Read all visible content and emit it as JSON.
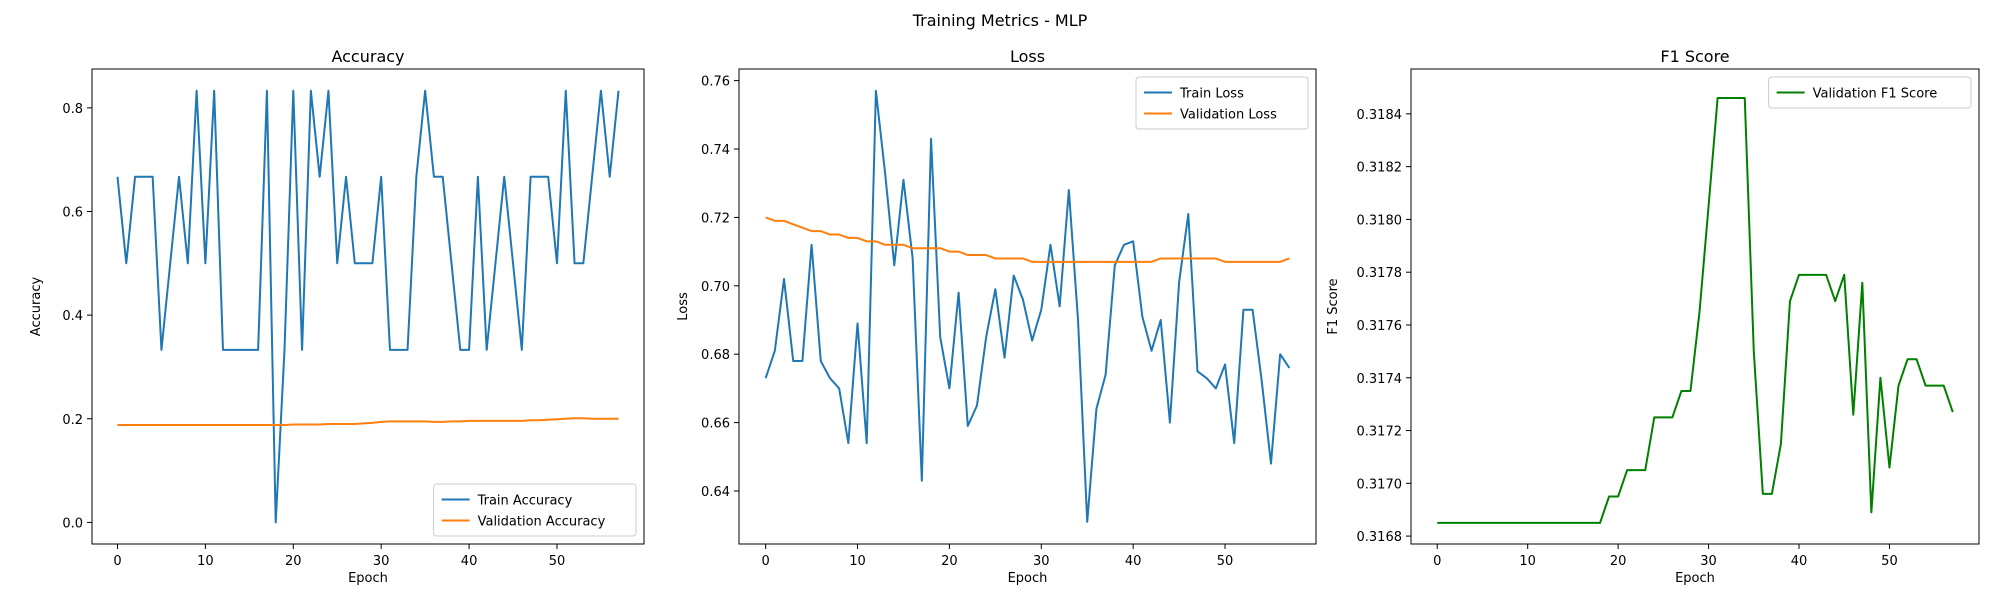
{
  "figure_title": "Training Metrics - MLP",
  "chart_data": [
    {
      "type": "line",
      "title": "Accuracy",
      "xlabel": "Epoch",
      "ylabel": "Accuracy",
      "xlim": [
        -2.9,
        59.9
      ],
      "ylim": [
        -0.0417,
        0.875
      ],
      "xticks": [
        0,
        10,
        20,
        30,
        40,
        50
      ],
      "yticks": [
        0.0,
        0.2,
        0.4,
        0.6,
        0.8
      ],
      "ytick_labels": [
        "0.0",
        "0.2",
        "0.4",
        "0.6",
        "0.8"
      ],
      "legend_loc": "lower right",
      "x": [
        0,
        1,
        2,
        3,
        4,
        5,
        6,
        7,
        8,
        9,
        10,
        11,
        12,
        13,
        14,
        15,
        16,
        17,
        18,
        19,
        20,
        21,
        22,
        23,
        24,
        25,
        26,
        27,
        28,
        29,
        30,
        31,
        32,
        33,
        34,
        35,
        36,
        37,
        38,
        39,
        40,
        41,
        42,
        43,
        44,
        45,
        46,
        47,
        48,
        49,
        50,
        51,
        52,
        53,
        54,
        55,
        56,
        57
      ],
      "series": [
        {
          "name": "Train Accuracy",
          "color": "#1f77b4",
          "values": [
            0.667,
            0.5,
            0.667,
            0.667,
            0.667,
            0.333,
            0.5,
            0.667,
            0.5,
            0.833,
            0.5,
            0.833,
            0.333,
            0.333,
            0.333,
            0.333,
            0.333,
            0.833,
            0.0,
            0.333,
            0.833,
            0.333,
            0.833,
            0.667,
            0.833,
            0.5,
            0.667,
            0.5,
            0.5,
            0.5,
            0.667,
            0.333,
            0.333,
            0.333,
            0.667,
            0.833,
            0.667,
            0.667,
            0.5,
            0.333,
            0.333,
            0.667,
            0.333,
            0.5,
            0.667,
            0.5,
            0.333,
            0.667,
            0.667,
            0.667,
            0.5,
            0.833,
            0.5,
            0.5,
            0.667,
            0.833,
            0.667,
            0.833
          ]
        },
        {
          "name": "Validation Accuracy",
          "color": "#ff7f0e",
          "values": [
            0.188,
            0.188,
            0.188,
            0.188,
            0.188,
            0.188,
            0.188,
            0.188,
            0.188,
            0.188,
            0.188,
            0.188,
            0.188,
            0.188,
            0.188,
            0.188,
            0.188,
            0.188,
            0.188,
            0.188,
            0.189,
            0.189,
            0.189,
            0.189,
            0.19,
            0.19,
            0.19,
            0.19,
            0.191,
            0.192,
            0.194,
            0.195,
            0.195,
            0.195,
            0.195,
            0.195,
            0.194,
            0.194,
            0.195,
            0.195,
            0.196,
            0.196,
            0.196,
            0.196,
            0.196,
            0.196,
            0.196,
            0.197,
            0.197,
            0.198,
            0.199,
            0.2,
            0.201,
            0.201,
            0.2,
            0.2,
            0.2,
            0.2
          ]
        }
      ]
    },
    {
      "type": "line",
      "title": "Loss",
      "xlabel": "Epoch",
      "ylabel": "Loss",
      "xlim": [
        -2.9,
        59.9
      ],
      "ylim": [
        0.6245,
        0.7634
      ],
      "xticks": [
        0,
        10,
        20,
        30,
        40,
        50
      ],
      "yticks": [
        0.64,
        0.66,
        0.68,
        0.7,
        0.72,
        0.74,
        0.76
      ],
      "ytick_labels": [
        "0.64",
        "0.66",
        "0.68",
        "0.70",
        "0.72",
        "0.74",
        "0.76"
      ],
      "legend_loc": "upper right",
      "x": [
        0,
        1,
        2,
        3,
        4,
        5,
        6,
        7,
        8,
        9,
        10,
        11,
        12,
        13,
        14,
        15,
        16,
        17,
        18,
        19,
        20,
        21,
        22,
        23,
        24,
        25,
        26,
        27,
        28,
        29,
        30,
        31,
        32,
        33,
        34,
        35,
        36,
        37,
        38,
        39,
        40,
        41,
        42,
        43,
        44,
        45,
        46,
        47,
        48,
        49,
        50,
        51,
        52,
        53,
        54,
        55,
        56,
        57
      ],
      "series": [
        {
          "name": "Train Loss",
          "color": "#1f77b4",
          "values": [
            0.673,
            0.681,
            0.702,
            0.678,
            0.678,
            0.712,
            0.678,
            0.673,
            0.67,
            0.654,
            0.689,
            0.654,
            0.757,
            0.733,
            0.706,
            0.731,
            0.708,
            0.643,
            0.743,
            0.685,
            0.67,
            0.698,
            0.659,
            0.665,
            0.685,
            0.699,
            0.679,
            0.703,
            0.696,
            0.684,
            0.693,
            0.712,
            0.694,
            0.728,
            0.69,
            0.631,
            0.664,
            0.674,
            0.706,
            0.712,
            0.713,
            0.691,
            0.681,
            0.69,
            0.66,
            0.701,
            0.721,
            0.675,
            0.673,
            0.67,
            0.677,
            0.654,
            0.693,
            0.693,
            0.672,
            0.648,
            0.68,
            0.676
          ]
        },
        {
          "name": "Validation Loss",
          "color": "#ff7f0e",
          "values": [
            0.72,
            0.719,
            0.719,
            0.718,
            0.717,
            0.716,
            0.716,
            0.715,
            0.715,
            0.714,
            0.714,
            0.713,
            0.713,
            0.712,
            0.712,
            0.712,
            0.711,
            0.711,
            0.711,
            0.711,
            0.71,
            0.71,
            0.709,
            0.709,
            0.709,
            0.708,
            0.708,
            0.708,
            0.708,
            0.707,
            0.707,
            0.707,
            0.707,
            0.707,
            0.707,
            0.707,
            0.707,
            0.707,
            0.707,
            0.707,
            0.707,
            0.707,
            0.707,
            0.708,
            0.708,
            0.708,
            0.708,
            0.708,
            0.708,
            0.708,
            0.707,
            0.707,
            0.707,
            0.707,
            0.707,
            0.707,
            0.707,
            0.708
          ]
        }
      ]
    },
    {
      "type": "line",
      "title": "F1 Score",
      "xlabel": "Epoch",
      "ylabel": "F1 Score",
      "xlim": [
        -2.9,
        59.9
      ],
      "ylim": [
        0.31677,
        0.31857
      ],
      "xticks": [
        0,
        10,
        20,
        30,
        40,
        50
      ],
      "yticks": [
        0.3168,
        0.317,
        0.3172,
        0.3174,
        0.3176,
        0.3178,
        0.318,
        0.3182,
        0.3184
      ],
      "ytick_labels": [
        "0.3168",
        "0.3170",
        "0.3172",
        "0.3174",
        "0.3176",
        "0.3178",
        "0.3180",
        "0.3182",
        "0.3184"
      ],
      "legend_loc": "upper right",
      "x": [
        0,
        1,
        2,
        3,
        4,
        5,
        6,
        7,
        8,
        9,
        10,
        11,
        12,
        13,
        14,
        15,
        16,
        17,
        18,
        19,
        20,
        21,
        22,
        23,
        24,
        25,
        26,
        27,
        28,
        29,
        30,
        31,
        32,
        33,
        34,
        35,
        36,
        37,
        38,
        39,
        40,
        41,
        42,
        43,
        44,
        45,
        46,
        47,
        48,
        49,
        50,
        51,
        52,
        53,
        54,
        55,
        56,
        57
      ],
      "series": [
        {
          "name": "Validation F1 Score",
          "color": "#008000",
          "values": [
            0.31685,
            0.31685,
            0.31685,
            0.31685,
            0.31685,
            0.31685,
            0.31685,
            0.31685,
            0.31685,
            0.31685,
            0.31685,
            0.31685,
            0.31685,
            0.31685,
            0.31685,
            0.31685,
            0.31685,
            0.31685,
            0.31685,
            0.31695,
            0.31695,
            0.31705,
            0.31705,
            0.31705,
            0.31725,
            0.31725,
            0.31725,
            0.31735,
            0.31735,
            0.31765,
            0.31805,
            0.31846,
            0.31846,
            0.31846,
            0.31846,
            0.3175,
            0.31696,
            0.31696,
            0.31715,
            0.31769,
            0.31779,
            0.31779,
            0.31779,
            0.31779,
            0.31769,
            0.31779,
            0.31726,
            0.31776,
            0.31689,
            0.3174,
            0.31706,
            0.31737,
            0.31747,
            0.31747,
            0.31737,
            0.31737,
            0.31737,
            0.31727
          ]
        }
      ]
    }
  ]
}
